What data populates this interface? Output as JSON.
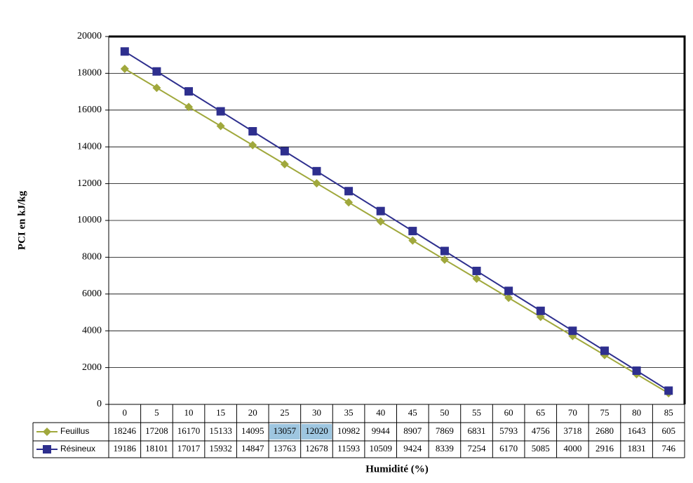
{
  "chart_data": {
    "type": "line",
    "y_label": "PCI en kJ/kg",
    "x_label": "Humidité (%)",
    "categories": [
      "0",
      "5",
      "10",
      "15",
      "20",
      "25",
      "30",
      "35",
      "40",
      "45",
      "50",
      "55",
      "60",
      "65",
      "70",
      "75",
      "80",
      "85"
    ],
    "series": [
      {
        "name": "Feuillus",
        "color": "#a0a83c",
        "marker": "diamond",
        "highlight": [
          5,
          6
        ],
        "values": [
          18246,
          17208,
          16170,
          15133,
          14095,
          13057,
          12020,
          10982,
          9944,
          8907,
          7869,
          6831,
          5793,
          4756,
          3718,
          2680,
          1643,
          605
        ]
      },
      {
        "name": "Résineux",
        "color": "#2e2f8e",
        "marker": "square",
        "values": [
          19186,
          18101,
          17017,
          15932,
          14847,
          13763,
          12678,
          11593,
          10509,
          9424,
          8339,
          7254,
          6170,
          5085,
          4000,
          2916,
          1831,
          746
        ]
      }
    ],
    "ylim": [
      0,
      20000
    ],
    "yticks": [
      0,
      2000,
      4000,
      6000,
      8000,
      10000,
      12000,
      14000,
      16000,
      18000,
      20000
    ],
    "grid": true,
    "data_table": true
  }
}
